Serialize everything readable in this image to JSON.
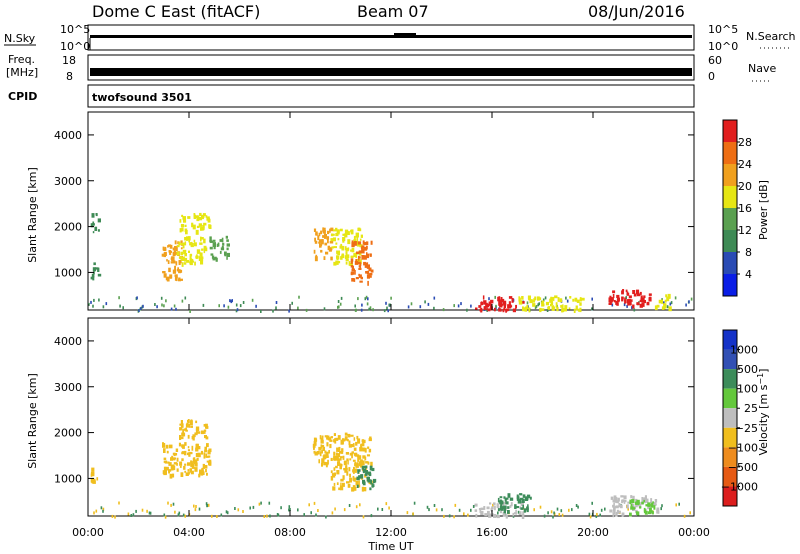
{
  "header": {
    "station": "Dome C East (fitACF)",
    "beam": "Beam 07",
    "date": "08/Jun/2016"
  },
  "strips": {
    "nsky": {
      "label": "N.Sky",
      "ticks": [
        "10^5",
        "10^0"
      ],
      "right_label": "N.Search",
      "right_ticks": [
        "10^5",
        "10^0"
      ]
    },
    "freq": {
      "label_lines": [
        "Freq.",
        "[MHz]"
      ],
      "ticks": [
        "18",
        "8"
      ],
      "right_label": "Nave",
      "right_ticks": [
        "60",
        "0"
      ]
    },
    "cpid": {
      "label": "CPID",
      "program": "twofsound 3501"
    }
  },
  "colors": {
    "power_scale": [
      "#0a1ee6",
      "#2a4bb4",
      "#3e8a55",
      "#5aa050",
      "#e6e614",
      "#f0a01e",
      "#ee6e14",
      "#e11e1e"
    ],
    "velocity_scale": [
      "#1432c8",
      "#3250b4",
      "#3c8c5a",
      "#64c83c",
      "#bebebe",
      "#f0be1e",
      "#ee8c1e",
      "#e65a14",
      "#dc1e1e"
    ]
  },
  "chart_data": [
    {
      "type": "heatmap",
      "name": "power",
      "xlabel": "",
      "ylabel": "Slant Range [km]",
      "xlim": [
        0,
        24
      ],
      "ylim": [
        180,
        4500
      ],
      "yticks": [
        1000,
        2000,
        3000,
        4000
      ],
      "colorbar": {
        "label": "Power [dB]",
        "range": [
          0,
          32
        ],
        "ticks": [
          4,
          8,
          12,
          16,
          20,
          24,
          28
        ]
      },
      "regions": [
        {
          "t": [
            0.1,
            0.4
          ],
          "r": [
            900,
            1250
          ],
          "value": 8
        },
        {
          "t": [
            0.1,
            0.4
          ],
          "r": [
            1900,
            2300
          ],
          "value": 10
        },
        {
          "t": [
            2.9,
            3.7
          ],
          "r": [
            850,
            1700
          ],
          "value": 20
        },
        {
          "t": [
            3.5,
            4.6
          ],
          "r": [
            1200,
            1800
          ],
          "value": 16
        },
        {
          "t": [
            3.6,
            4.8
          ],
          "r": [
            1900,
            2300
          ],
          "value": 18
        },
        {
          "t": [
            4.8,
            5.5
          ],
          "r": [
            1300,
            1800
          ],
          "value": 14
        },
        {
          "t": [
            8.9,
            9.6
          ],
          "r": [
            1300,
            2000
          ],
          "value": 20
        },
        {
          "t": [
            9.6,
            10.8
          ],
          "r": [
            1200,
            2000
          ],
          "value": 18
        },
        {
          "t": [
            10.4,
            11.2
          ],
          "r": [
            800,
            1700
          ],
          "value": 24
        },
        {
          "t": [
            15.3,
            17.2
          ],
          "r": [
            200,
            500
          ],
          "value": 28
        },
        {
          "t": [
            17.0,
            19.6
          ],
          "r": [
            200,
            500
          ],
          "value": 16
        },
        {
          "t": [
            20.6,
            22.4
          ],
          "r": [
            300,
            650
          ],
          "value": 28
        },
        {
          "t": [
            22.4,
            23.0
          ],
          "r": [
            250,
            550
          ],
          "value": 16
        }
      ]
    },
    {
      "type": "heatmap",
      "name": "velocity",
      "xlabel": "Time UT",
      "ylabel": "Slant Range [km]",
      "xlim": [
        0,
        24
      ],
      "xticks": [
        "00:00",
        "04:00",
        "08:00",
        "12:00",
        "16:00",
        "20:00",
        "00:00"
      ],
      "ylim": [
        180,
        4500
      ],
      "yticks": [
        1000,
        2000,
        3000,
        4000
      ],
      "colorbar": {
        "label": "Velocity [m s^-1]",
        "ticks": [
          "1000",
          "500",
          "100",
          "25",
          "−25",
          "−100",
          "−500",
          "−1000"
        ]
      },
      "regions": [
        {
          "t": [
            0.1,
            0.4
          ],
          "r": [
            900,
            1250
          ],
          "value": -100
        },
        {
          "t": [
            2.9,
            4.8
          ],
          "r": [
            1100,
            1800
          ],
          "value": -100
        },
        {
          "t": [
            3.6,
            4.8
          ],
          "r": [
            1900,
            2300
          ],
          "value": -100
        },
        {
          "t": [
            8.9,
            9.6
          ],
          "r": [
            1300,
            2000
          ],
          "value": -100
        },
        {
          "t": [
            9.6,
            11.2
          ],
          "r": [
            800,
            2000
          ],
          "value": -100
        },
        {
          "t": [
            10.6,
            11.3
          ],
          "r": [
            800,
            1300
          ],
          "value": 100
        },
        {
          "t": [
            15.3,
            17.2
          ],
          "r": [
            200,
            500
          ],
          "value": -25
        },
        {
          "t": [
            16.2,
            17.5
          ],
          "r": [
            300,
            700
          ],
          "value": 100
        },
        {
          "t": [
            20.6,
            22.6
          ],
          "r": [
            250,
            650
          ],
          "value": -25
        },
        {
          "t": [
            21.4,
            22.4
          ],
          "r": [
            250,
            600
          ],
          "value": 25
        }
      ]
    }
  ]
}
